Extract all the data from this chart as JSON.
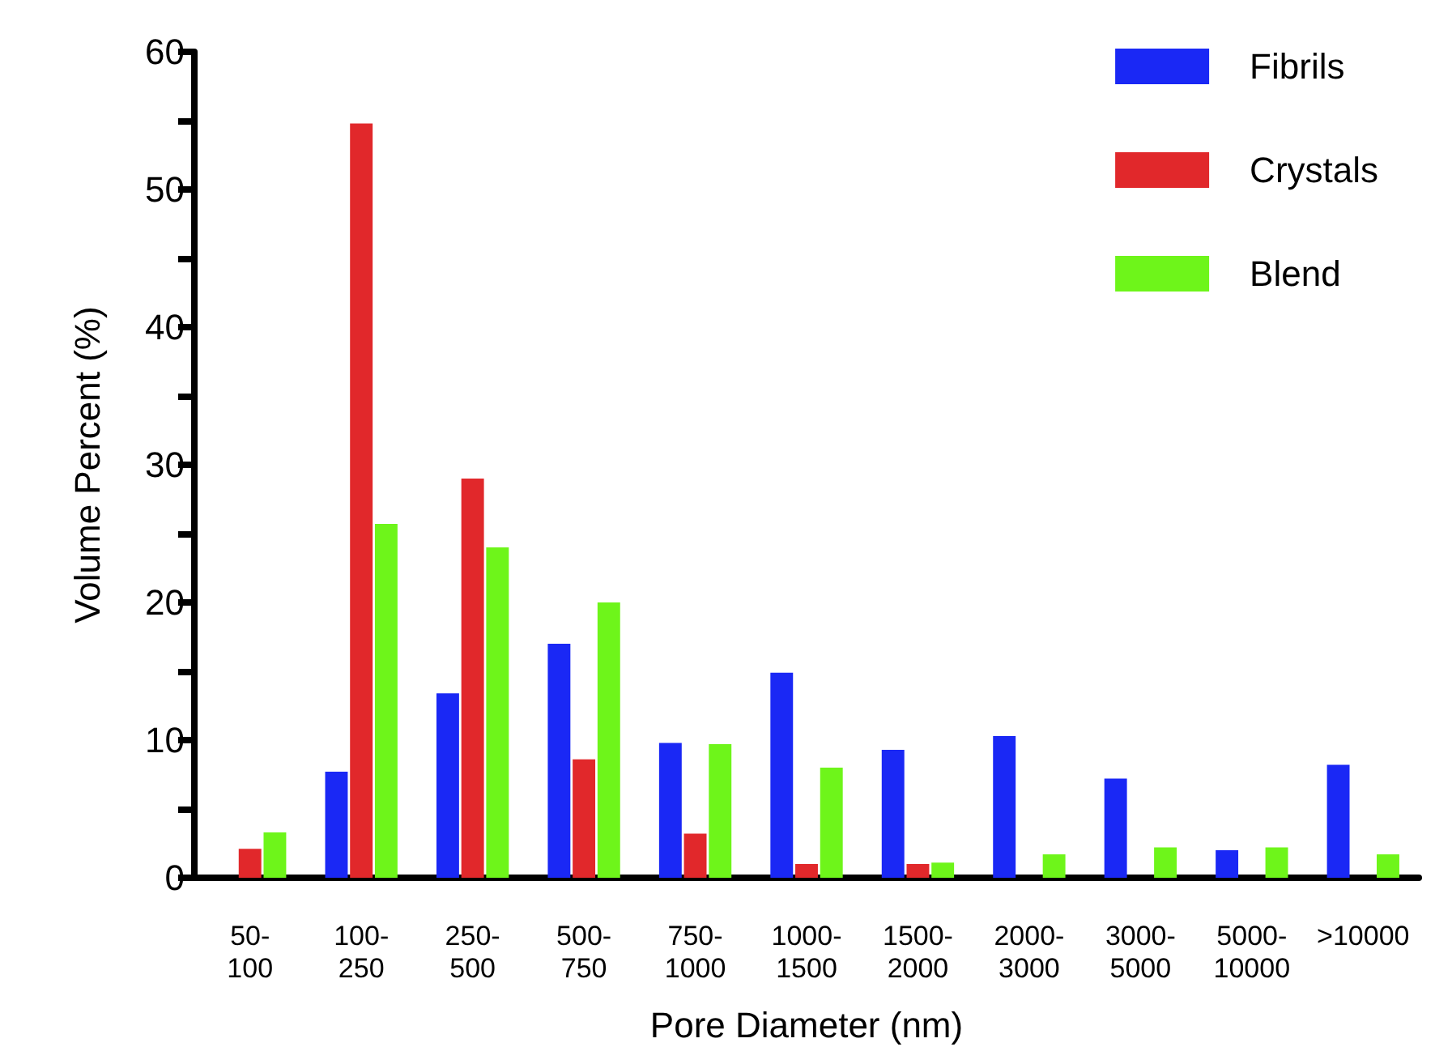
{
  "chart_data": {
    "type": "bar",
    "xlabel": "Pore Diameter (nm)",
    "ylabel": "Volume Percent (%)",
    "categories": [
      "50-\n100",
      "100-\n250",
      "250-\n500",
      "500-\n750",
      "750-\n1000",
      "1000-\n1500",
      "1500-\n2000",
      "2000-\n3000",
      "3000-\n5000",
      "5000-\n10000",
      ">10000"
    ],
    "series": [
      {
        "name": "Fibrils",
        "color": "#1a28f5",
        "values": [
          0,
          7.7,
          13.4,
          17,
          9.8,
          14.9,
          9.3,
          10.3,
          7.2,
          2,
          8.2
        ]
      },
      {
        "name": "Crystals",
        "color": "#e1282b",
        "values": [
          2.1,
          54.8,
          29,
          8.6,
          3.2,
          1,
          1,
          0,
          0,
          0,
          0
        ]
      },
      {
        "name": "Blend",
        "color": "#6ef51a",
        "values": [
          3.3,
          25.7,
          24,
          20,
          9.7,
          8,
          1.1,
          1.7,
          2.2,
          2.2,
          1.7
        ]
      }
    ],
    "ylim": [
      0,
      60
    ],
    "yticks": [
      0,
      {
        "value": 5,
        "label": null
      },
      10,
      {
        "value": 15,
        "label": null
      },
      20,
      {
        "value": 25,
        "label": null
      },
      30,
      {
        "value": 35,
        "label": null
      },
      40,
      {
        "value": 45,
        "label": null
      },
      50,
      {
        "value": 55,
        "label": null
      },
      60
    ],
    "grid": false,
    "legend": "top right"
  }
}
